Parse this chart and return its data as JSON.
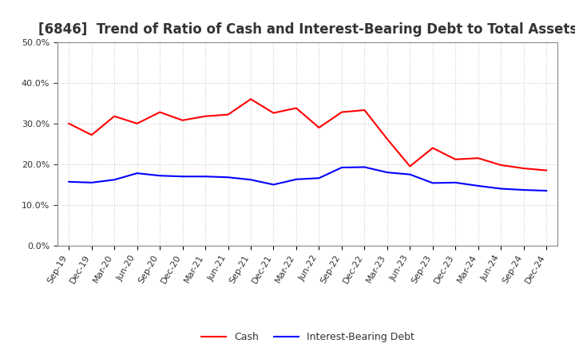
{
  "title": "[6846]  Trend of Ratio of Cash and Interest-Bearing Debt to Total Assets",
  "x_labels": [
    "Sep-19",
    "Dec-19",
    "Mar-20",
    "Jun-20",
    "Sep-20",
    "Dec-20",
    "Mar-21",
    "Jun-21",
    "Sep-21",
    "Dec-21",
    "Mar-22",
    "Jun-22",
    "Sep-22",
    "Dec-22",
    "Mar-23",
    "Jun-23",
    "Sep-23",
    "Dec-23",
    "Mar-24",
    "Jun-24",
    "Sep-24",
    "Dec-24"
  ],
  "cash": [
    0.3,
    0.272,
    0.318,
    0.3,
    0.328,
    0.308,
    0.318,
    0.322,
    0.36,
    0.326,
    0.338,
    0.29,
    0.328,
    0.333,
    0.262,
    0.195,
    0.24,
    0.212,
    0.215,
    0.198,
    0.19,
    0.185
  ],
  "debt": [
    0.157,
    0.155,
    0.162,
    0.178,
    0.172,
    0.17,
    0.17,
    0.168,
    0.162,
    0.15,
    0.163,
    0.166,
    0.192,
    0.193,
    0.18,
    0.175,
    0.154,
    0.155,
    0.147,
    0.14,
    0.137,
    0.135
  ],
  "cash_color": "#ff0000",
  "debt_color": "#0000ff",
  "ylim": [
    0.0,
    0.5
  ],
  "yticks": [
    0.0,
    0.1,
    0.2,
    0.3,
    0.4,
    0.5
  ],
  "background_color": "#ffffff",
  "grid_color": "#aaaaaa",
  "title_fontsize": 12,
  "tick_fontsize": 8,
  "legend_cash": "Cash",
  "legend_debt": "Interest-Bearing Debt"
}
